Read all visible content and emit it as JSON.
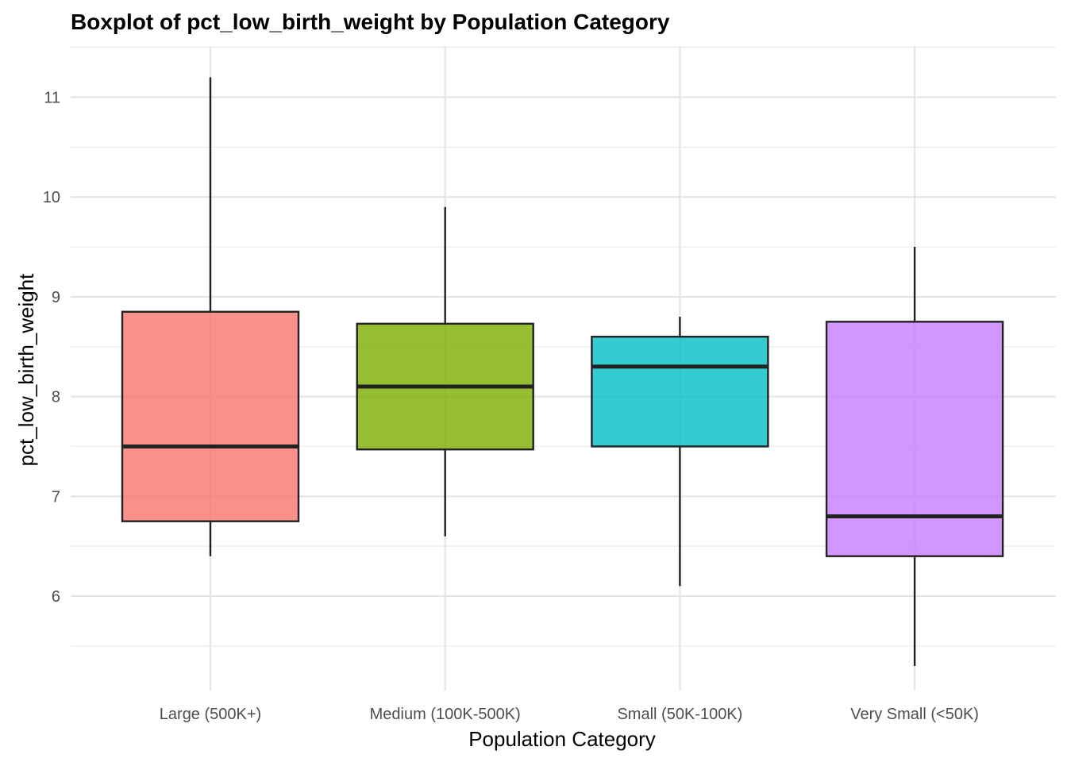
{
  "chart_data": {
    "type": "boxplot",
    "title": "Boxplot of pct_low_birth_weight by Population Category",
    "xlabel": "Population Category",
    "ylabel": "pct_low_birth_weight",
    "ylim": [
      5.0,
      11.5
    ],
    "yticks": [
      6,
      7,
      8,
      9,
      10,
      11
    ],
    "grid": true,
    "legend": "none",
    "categories": [
      "Large (500K+)",
      "Medium (100K-500K)",
      "Small (50K-100K)",
      "Very Small (<50K)"
    ],
    "boxes": [
      {
        "category": "Large (500K+)",
        "min": 6.4,
        "q1": 6.75,
        "median": 7.5,
        "q3": 8.85,
        "max": 11.2,
        "color": "#F8766D"
      },
      {
        "category": "Medium (100K-500K)",
        "min": 6.6,
        "q1": 7.47,
        "median": 8.1,
        "q3": 8.73,
        "max": 9.9,
        "color": "#7CAE00"
      },
      {
        "category": "Small (50K-100K)",
        "min": 6.1,
        "q1": 7.5,
        "median": 8.3,
        "q3": 8.6,
        "max": 8.8,
        "color": "#00BFC4"
      },
      {
        "category": "Very Small (<50K)",
        "min": 5.3,
        "q1": 6.4,
        "median": 6.8,
        "q3": 8.75,
        "max": 9.5,
        "color": "#C77CFF"
      }
    ]
  }
}
